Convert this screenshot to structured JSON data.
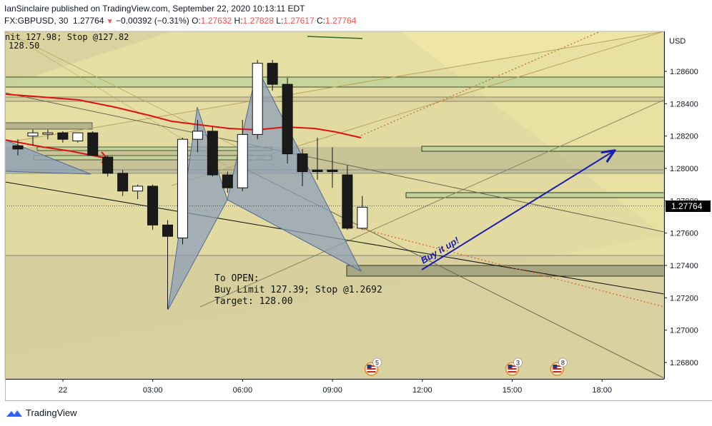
{
  "header": {
    "publish_line": "IanSinclaire published on TradingView.com, September 22, 2020 10:13:11 EDT",
    "symbol_line": "FX:GBPUSD, 30",
    "last": "1.27764",
    "change": "−0.00392 (−0.31%)",
    "open_label": "O:",
    "open": "1.27632",
    "high_label": "H:",
    "high": "1.27828",
    "low_label": "L:",
    "low": "1.27617",
    "close_label": "C:",
    "close": "1.27764"
  },
  "annotations": {
    "top_left_line1": "nit 127.98; Stop @127.82",
    "top_left_line2": "128.50",
    "to_open_1": "To OPEN:",
    "to_open_2": "Buy Limit 127.39; Stop @1.2692",
    "to_open_3": "Target: 128.00",
    "buy_it_up": "Buy it up!"
  },
  "footer": {
    "brand": "TradingView"
  },
  "colors": {
    "up_candle": "#ffffff",
    "down_candle": "#1a1a1a",
    "moving_average": "#e01010",
    "arrow": "#1b1bb0",
    "price_tag": "#000000",
    "zone_fill": "#c8d8a0",
    "pattern_fill": "#8ea0b8"
  },
  "chart_data": {
    "type": "candlestick",
    "symbol": "FX:GBPUSD",
    "interval": "30",
    "y_axis": {
      "currency": "USD",
      "ticks": [
        "1.28600",
        "1.28400",
        "1.28200",
        "1.28000",
        "1.27800",
        "1.27600",
        "1.27400",
        "1.27200",
        "1.27000",
        "1.26800"
      ],
      "range": [
        1.2665,
        1.287
      ],
      "last_price": "1.27764"
    },
    "x_axis": {
      "ticks": [
        "22",
        "03:00",
        "06:00",
        "09:00",
        "12:00",
        "15:00",
        "18:00"
      ]
    },
    "candles": [
      {
        "t": "21 22:00",
        "o": 1.2814,
        "h": 1.2818,
        "l": 1.2808,
        "c": 1.2812
      },
      {
        "t": "21 22:30",
        "o": 1.282,
        "h": 1.2824,
        "l": 1.2814,
        "c": 1.2822
      },
      {
        "t": "21 23:00",
        "o": 1.2822,
        "h": 1.2824,
        "l": 1.2818,
        "c": 1.2822
      },
      {
        "t": "21 23:30",
        "o": 1.2822,
        "h": 1.2823,
        "l": 1.2816,
        "c": 1.2818
      },
      {
        "t": "22 00:00",
        "o": 1.2817,
        "h": 1.2822,
        "l": 1.2816,
        "c": 1.2822
      },
      {
        "t": "22 00:30",
        "o": 1.2822,
        "h": 1.2823,
        "l": 1.2808,
        "c": 1.2808
      },
      {
        "t": "22 01:00",
        "o": 1.2807,
        "h": 1.2808,
        "l": 1.2795,
        "c": 1.2797
      },
      {
        "t": "22 01:30",
        "o": 1.2797,
        "h": 1.2799,
        "l": 1.2783,
        "c": 1.2786
      },
      {
        "t": "22 02:00",
        "o": 1.2786,
        "h": 1.279,
        "l": 1.2781,
        "c": 1.2789
      },
      {
        "t": "22 02:30",
        "o": 1.2789,
        "h": 1.279,
        "l": 1.2762,
        "c": 1.2765
      },
      {
        "t": "22 03:00",
        "o": 1.2765,
        "h": 1.2768,
        "l": 1.2713,
        "c": 1.2758
      },
      {
        "t": "22 03:30",
        "o": 1.2757,
        "h": 1.2819,
        "l": 1.2753,
        "c": 1.2818
      },
      {
        "t": "22 04:00",
        "o": 1.2818,
        "h": 1.283,
        "l": 1.281,
        "c": 1.2823
      },
      {
        "t": "22 04:30",
        "o": 1.2823,
        "h": 1.2826,
        "l": 1.2795,
        "c": 1.2796
      },
      {
        "t": "22 05:00",
        "o": 1.2796,
        "h": 1.2798,
        "l": 1.2785,
        "c": 1.2788
      },
      {
        "t": "22 05:30",
        "o": 1.2788,
        "h": 1.283,
        "l": 1.2786,
        "c": 1.2821
      },
      {
        "t": "22 06:00",
        "o": 1.2821,
        "h": 1.2867,
        "l": 1.2818,
        "c": 1.2865
      },
      {
        "t": "22 06:30",
        "o": 1.2865,
        "h": 1.2867,
        "l": 1.2848,
        "c": 1.2852
      },
      {
        "t": "22 07:00",
        "o": 1.2852,
        "h": 1.2856,
        "l": 1.2803,
        "c": 1.2809
      },
      {
        "t": "22 07:30",
        "o": 1.2809,
        "h": 1.2812,
        "l": 1.2789,
        "c": 1.2798
      },
      {
        "t": "22 08:00",
        "o": 1.2799,
        "h": 1.2819,
        "l": 1.2793,
        "c": 1.2798
      },
      {
        "t": "22 08:30",
        "o": 1.2799,
        "h": 1.2813,
        "l": 1.2788,
        "c": 1.2798
      },
      {
        "t": "22 09:00",
        "o": 1.2796,
        "h": 1.2802,
        "l": 1.2762,
        "c": 1.2763
      },
      {
        "t": "22 09:30",
        "o": 1.2763,
        "h": 1.2783,
        "l": 1.2762,
        "c": 1.2776
      }
    ],
    "events": [
      {
        "time": "22 10:00",
        "label": "5"
      },
      {
        "time": "22 15:00",
        "label": "3"
      },
      {
        "time": "22 17:00",
        "label": "8"
      }
    ]
  }
}
